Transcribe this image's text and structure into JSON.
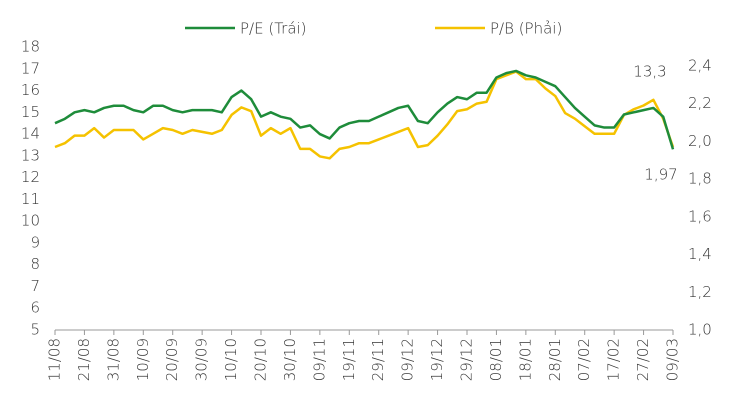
{
  "chart_data": {
    "type": "line",
    "categories": [
      "11/08",
      null,
      null,
      "21/08",
      null,
      null,
      "31/08",
      null,
      null,
      "10/09",
      null,
      null,
      "20/09",
      null,
      null,
      "30/09",
      null,
      null,
      "10/10",
      null,
      null,
      "20/10",
      null,
      null,
      "30/10",
      null,
      null,
      "09/11",
      null,
      null,
      "19/11",
      null,
      null,
      "29/11",
      null,
      null,
      "09/12",
      null,
      null,
      "19/12",
      null,
      null,
      "29/12",
      null,
      null,
      "08/01",
      null,
      null,
      "18/01",
      null,
      null,
      "28/01",
      null,
      null,
      "07/02",
      null,
      null,
      "17/02",
      null,
      null,
      "27/02",
      null,
      null,
      "09/03"
    ],
    "series": [
      {
        "name": "P/E (Trái)",
        "color": "#1e8c3a",
        "values": [
          14.5,
          14.7,
          15.0,
          15.1,
          15.0,
          15.2,
          15.3,
          15.3,
          15.1,
          15.0,
          15.3,
          15.3,
          15.1,
          15.0,
          15.1,
          15.1,
          15.1,
          15.0,
          15.7,
          16.0,
          15.6,
          14.8,
          15.0,
          14.8,
          14.7,
          14.3,
          14.4,
          14.0,
          13.8,
          14.3,
          14.5,
          14.6,
          14.6,
          14.8,
          15.0,
          15.2,
          15.3,
          14.6,
          14.5,
          15.0,
          15.4,
          15.7,
          15.6,
          15.9,
          15.9,
          16.6,
          16.8,
          16.9,
          16.7,
          16.6,
          16.4,
          16.2,
          15.7,
          15.2,
          14.8,
          14.4,
          14.3,
          14.3,
          14.9,
          15.0,
          15.1,
          15.2,
          14.8,
          13.3
        ]
      },
      {
        "name": "P/B (Phải)",
        "color": "#f5c200",
        "axis": "y2",
        "values": [
          1.97,
          1.99,
          2.03,
          2.03,
          2.07,
          2.02,
          2.06,
          2.06,
          2.06,
          2.01,
          2.04,
          2.07,
          2.06,
          2.04,
          2.06,
          2.05,
          2.04,
          2.06,
          2.14,
          2.18,
          2.16,
          2.03,
          2.07,
          2.04,
          2.07,
          1.96,
          1.96,
          1.92,
          1.91,
          1.96,
          1.97,
          1.99,
          1.99,
          2.01,
          2.03,
          2.05,
          2.07,
          1.97,
          1.98,
          2.03,
          2.09,
          2.16,
          2.17,
          2.2,
          2.21,
          2.33,
          2.35,
          2.37,
          2.33,
          2.33,
          2.28,
          2.24,
          2.15,
          2.12,
          2.08,
          2.04,
          2.04,
          2.04,
          2.14,
          2.17,
          2.19,
          2.22,
          2.12,
          1.97
        ]
      }
    ],
    "annotations": [
      "13,3",
      "1,97"
    ],
    "ylim": [
      5,
      18
    ],
    "yticks": [
      5,
      6,
      7,
      8,
      9,
      10,
      11,
      12,
      13,
      14,
      15,
      16,
      17,
      18
    ],
    "y2lim": [
      1.0,
      2.5
    ],
    "y2ticks": [
      {
        "value": 1.0,
        "label": "1,0"
      },
      {
        "value": 1.2,
        "label": "1,2"
      },
      {
        "value": 1.4,
        "label": "1,4"
      },
      {
        "value": 1.6,
        "label": "1,6"
      },
      {
        "value": 1.8,
        "label": "1,8"
      },
      {
        "value": 2.0,
        "label": "2,0"
      },
      {
        "value": 2.2,
        "label": "2,2"
      },
      {
        "value": 2.4,
        "label": "2,4"
      }
    ],
    "grid": false,
    "legend": "top"
  }
}
